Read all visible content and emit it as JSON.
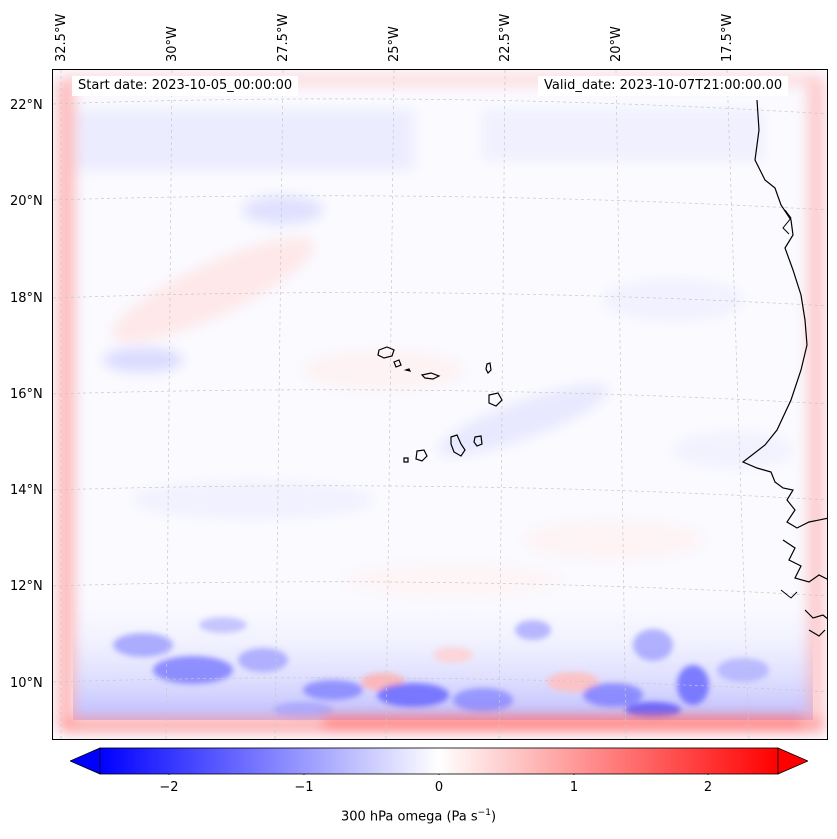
{
  "map": {
    "start_date": "Start date: 2023-10-05_00:00:00",
    "valid_date": "Valid_date: 2023-10-07T21:00:00.00",
    "lon_labels": [
      "32.5°W",
      "30°W",
      "27.5°W",
      "25°W",
      "22.5°W",
      "20°W",
      "17.5°W"
    ],
    "lat_labels": [
      "22°N",
      "20°N",
      "18°N",
      "16°N",
      "14°N",
      "12°N",
      "10°N"
    ],
    "field": "300 hPa omega",
    "coastline_color": "#000000",
    "gridline_color": "#c8c8c8"
  },
  "colorbar": {
    "label_main": "300 hPa omega (Pa s",
    "label_exp": "−1",
    "label_end": ")",
    "ticks": [
      "−2",
      "−1",
      "0",
      "1",
      "2"
    ],
    "range": [
      -2.6,
      2.6
    ],
    "cmap": "bwr",
    "low_color": "#0000ff",
    "mid_color": "#ffffff",
    "high_color": "#ff0000"
  }
}
